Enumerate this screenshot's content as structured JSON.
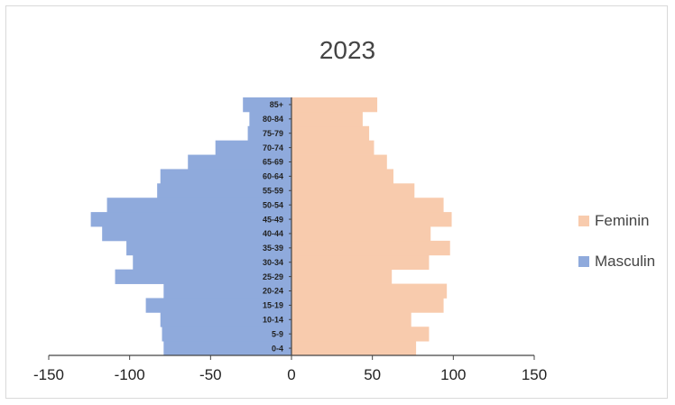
{
  "chart_data": {
    "type": "bar",
    "orientation": "horizontal",
    "title": "2023",
    "categories": [
      "0-4",
      "5-9",
      "10-14",
      "15-19",
      "20-24",
      "25-29",
      "30-34",
      "35-39",
      "40-44",
      "45-49",
      "50-54",
      "55-59",
      "60-64",
      "65-69",
      "70-74",
      "75-79",
      "80-84",
      "85+"
    ],
    "series": [
      {
        "name": "Feminin",
        "color": "#f8cbad",
        "values": [
          77,
          85,
          74,
          94,
          96,
          62,
          85,
          98,
          86,
          99,
          94,
          76,
          63,
          59,
          51,
          48,
          44,
          53
        ]
      },
      {
        "name": "Masculin",
        "color": "#8faadc",
        "values": [
          -79,
          -80,
          -81,
          -90,
          -79,
          -109,
          -98,
          -102,
          -117,
          -124,
          -114,
          -83,
          -81,
          -64,
          -47,
          -27,
          -26,
          -30
        ]
      }
    ],
    "x_ticks": [
      "-150",
      "-100",
      "-50",
      "0",
      "50",
      "100",
      "150"
    ],
    "xlim": [
      -150,
      150
    ],
    "legend_position": "right",
    "grid": false
  }
}
